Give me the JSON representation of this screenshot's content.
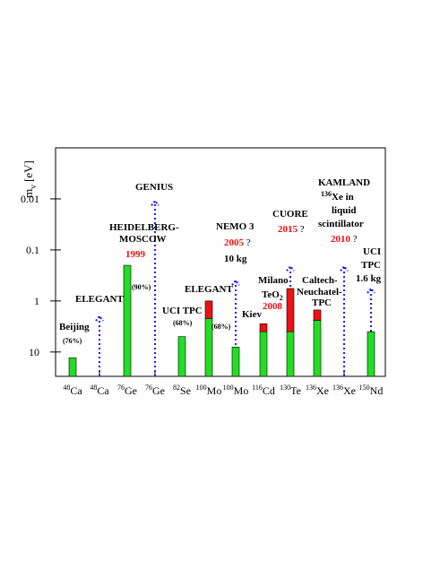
{
  "chart_data": {
    "type": "bar",
    "y_label": {
      "main": "m",
      "sub": "ν",
      "unit": " [eV]"
    },
    "categories": [
      "Ca",
      "Ca",
      "Ge",
      "Ge",
      "Se",
      "Mo",
      "Mo",
      "Cd",
      "Te",
      "Xe",
      "Xe",
      "Nd"
    ],
    "mass_numbers": [
      "48",
      "48",
      "76",
      "76",
      "82",
      "100",
      "100",
      "116",
      "130",
      "136",
      "136",
      "150"
    ],
    "ylim": [
      30,
      0.001
    ],
    "log_y": true,
    "inverted_y": true,
    "yticks": [
      0.01,
      0.1,
      1,
      10
    ],
    "series": [
      {
        "color": "#22dd22",
        "values": [
          13,
          null,
          0.2,
          null,
          5,
          2.2,
          8,
          4,
          4,
          2.4,
          null,
          4
        ]
      },
      {
        "color": "#ee1111",
        "values": [
          null,
          null,
          null,
          null,
          null,
          1,
          null,
          2.8,
          0.57,
          1.5,
          null,
          null
        ]
      },
      {
        "color": "#1a1aff",
        "style": "dotted-arrow",
        "values": [
          null,
          2,
          null,
          0.011,
          null,
          null,
          0.4,
          null,
          0.21,
          null,
          0.21,
          0.57
        ]
      }
    ],
    "annotations": [
      {
        "text": "Beijing"
      },
      {
        "text": "(76%)",
        "small": true
      },
      {
        "text": "ELEGANT"
      },
      {
        "text": "HEIDELBERG-"
      },
      {
        "text": "MOSCOW"
      },
      {
        "text": "1999",
        "color": "#ee1111"
      },
      {
        "text": "(90%)",
        "small": true
      },
      {
        "text": "GENIUS"
      },
      {
        "text": "UCI TPC"
      },
      {
        "text": "(68%)",
        "small": true
      },
      {
        "text": "ELEGANT"
      },
      {
        "text": "(68%)",
        "small": true
      },
      {
        "text": "NEMO 3"
      },
      {
        "text": "2005",
        "color": "#ee1111",
        "suffix": " ?"
      },
      {
        "text": "10 kg"
      },
      {
        "text": "Kiev"
      },
      {
        "text": "Milano"
      },
      {
        "text": "TeO",
        "sub": "2"
      },
      {
        "text": "2008",
        "color": "#ee1111"
      },
      {
        "text": "CUORE"
      },
      {
        "text": "2015",
        "color": "#ee1111",
        "suffix": " ?"
      },
      {
        "text": "Caltech-"
      },
      {
        "text": "Neuchatel-"
      },
      {
        "text": "TPC"
      },
      {
        "text": "KAMLAND"
      },
      {
        "sup": "136",
        "text": "Xe in"
      },
      {
        "text": "liquid"
      },
      {
        "text": "scintillator"
      },
      {
        "text": "2010",
        "color": "#ee1111",
        "suffix": " ?"
      },
      {
        "text": "UCI"
      },
      {
        "text": "TPC"
      },
      {
        "text": "1.6 kg"
      }
    ]
  }
}
